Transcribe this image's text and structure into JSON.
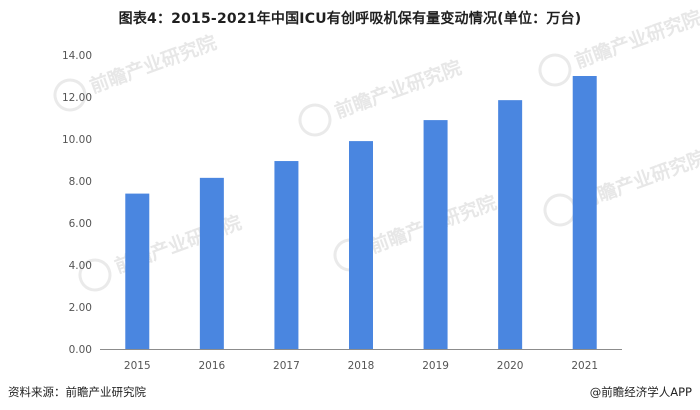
{
  "title": "图表4：2015-2021年中国ICU有创呼吸机保有量变动情况(单位：万台)",
  "footer": {
    "source": "资料来源：前瞻产业研究院",
    "brand": "@前瞻经济学人APP"
  },
  "watermark": {
    "text": "前瞻产业研究院"
  },
  "colors": {
    "bar": "#4a86e0",
    "axis": "#8c8c8c",
    "tick_text": "#555555"
  },
  "chart_data": {
    "type": "bar",
    "title": "图表4：2015-2021年中国ICU有创呼吸机保有量变动情况(单位：万台)",
    "xlabel": "",
    "ylabel": "",
    "categories": [
      "2015",
      "2016",
      "2017",
      "2018",
      "2019",
      "2020",
      "2021"
    ],
    "values": [
      7.4,
      8.15,
      8.95,
      9.9,
      10.9,
      11.85,
      13.0
    ],
    "ylim": [
      0,
      14
    ],
    "yticks": [
      "0.00",
      "2.00",
      "4.00",
      "6.00",
      "8.00",
      "10.00",
      "12.00",
      "14.00"
    ],
    "grid": false,
    "legend": "none"
  }
}
